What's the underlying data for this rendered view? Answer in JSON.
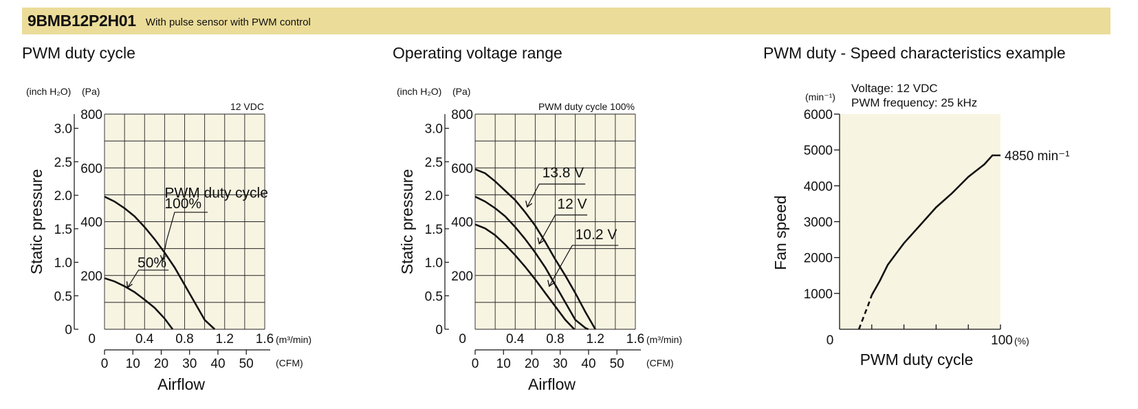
{
  "header": {
    "model": "9BMB12P2H01",
    "subtitle": "With pulse sensor with PWM control"
  },
  "panels": {
    "left_title": "PWM duty cycle",
    "middle_title": "Operating voltage range",
    "right_title": "PWM duty - Speed characteristics example"
  },
  "colors": {
    "banner": "#ebdc99",
    "plot_bg": "#f8f4e2",
    "line": "#111111",
    "speed_bg": "#f8f4e2"
  },
  "chart_data": [
    {
      "type": "line",
      "title": "PWM duty cycle",
      "ylabel": "Static pressure",
      "xlabel": "Airflow",
      "condition": "12 VDC",
      "x_unit": "(m³/min)",
      "x2_unit": "(CFM)",
      "y_unit_inch": "(inch H₂O)",
      "y_unit_pa": "(Pa)",
      "xlim": [
        0,
        1.6
      ],
      "ylim": [
        0,
        800
      ],
      "x_ticks": [
        "0",
        "0.4",
        "0.8",
        "1.2",
        "1.6"
      ],
      "y_ticks_pa": [
        "0",
        "200",
        "400",
        "600",
        "800"
      ],
      "y_ticks_inch": [
        "0",
        "0.5",
        "1.0",
        "1.5",
        "2.0",
        "2.5",
        "3.0"
      ],
      "cfm_ticks": [
        "0",
        "10",
        "20",
        "30",
        "40",
        "50"
      ],
      "grid": true,
      "series": [
        {
          "label": "100%",
          "x": [
            0,
            0.1,
            0.2,
            0.3,
            0.4,
            0.5,
            0.6,
            0.7,
            0.8,
            0.9,
            1.0,
            1.1
          ],
          "y": [
            493,
            475,
            450,
            420,
            380,
            335,
            285,
            230,
            165,
            100,
            35,
            0
          ]
        },
        {
          "label": "50%",
          "x": [
            0,
            0.1,
            0.2,
            0.3,
            0.4,
            0.5,
            0.6,
            0.68
          ],
          "y": [
            190,
            178,
            160,
            138,
            110,
            80,
            40,
            0
          ]
        }
      ],
      "annotations": [
        "PWM duty cycle",
        "100%",
        "50%"
      ]
    },
    {
      "type": "line",
      "title": "Operating voltage range",
      "ylabel": "Static pressure",
      "xlabel": "Airflow",
      "condition": "PWM duty cycle 100%",
      "x_unit": "(m³/min)",
      "x2_unit": "(CFM)",
      "y_unit_inch": "(inch H₂O)",
      "y_unit_pa": "(Pa)",
      "xlim": [
        0,
        1.6
      ],
      "ylim": [
        0,
        800
      ],
      "x_ticks": [
        "0",
        "0.4",
        "0.8",
        "1.2",
        "1.6"
      ],
      "y_ticks_pa": [
        "0",
        "200",
        "400",
        "600",
        "800"
      ],
      "y_ticks_inch": [
        "0",
        "0.5",
        "1.0",
        "1.5",
        "2.0",
        "2.5",
        "3.0"
      ],
      "cfm_ticks": [
        "0",
        "10",
        "20",
        "30",
        "40",
        "50"
      ],
      "grid": true,
      "series": [
        {
          "label": "13.8 V",
          "x": [
            0,
            0.1,
            0.2,
            0.3,
            0.4,
            0.5,
            0.6,
            0.7,
            0.8,
            0.9,
            1.0,
            1.1,
            1.2
          ],
          "y": [
            595,
            580,
            550,
            515,
            480,
            435,
            385,
            325,
            260,
            200,
            135,
            65,
            0
          ]
        },
        {
          "label": "12 V",
          "x": [
            0,
            0.1,
            0.2,
            0.3,
            0.4,
            0.5,
            0.6,
            0.7,
            0.8,
            0.9,
            1.0,
            1.1,
            1.13
          ],
          "y": [
            493,
            475,
            450,
            420,
            380,
            335,
            285,
            230,
            165,
            100,
            35,
            5,
            0
          ]
        },
        {
          "label": "10.2 V",
          "x": [
            0,
            0.1,
            0.2,
            0.3,
            0.4,
            0.5,
            0.6,
            0.7,
            0.8,
            0.9,
            0.99
          ],
          "y": [
            390,
            375,
            350,
            315,
            275,
            232,
            185,
            135,
            85,
            35,
            0
          ]
        }
      ],
      "annotations": [
        "13.8 V",
        "12 V",
        "10.2 V"
      ]
    },
    {
      "type": "line",
      "title": "PWM duty - Speed characteristics example",
      "ylabel": "Fan speed",
      "xlabel": "PWM duty cycle",
      "conditions": [
        "Voltage: 12 VDC",
        "PWM frequency: 25 kHz"
      ],
      "y_unit": "(min⁻¹)",
      "x_unit": "(%)",
      "xlim": [
        0,
        100
      ],
      "ylim": [
        0,
        6000
      ],
      "x_ticks": [
        "0",
        "100"
      ],
      "y_ticks": [
        "1000",
        "2000",
        "3000",
        "4000",
        "5000",
        "6000"
      ],
      "grid": false,
      "series": [
        {
          "label": "Fan speed",
          "x": [
            20,
            25,
            30,
            35,
            40,
            50,
            60,
            70,
            80,
            90,
            95,
            100
          ],
          "y": [
            950,
            1350,
            1800,
            2100,
            2400,
            2900,
            3400,
            3800,
            4250,
            4600,
            4850,
            4850
          ]
        },
        {
          "label": "extrapolated",
          "dashed": true,
          "x": [
            12,
            15,
            18,
            20
          ],
          "y": [
            0,
            350,
            700,
            950
          ]
        }
      ],
      "annotations": [
        "4850 min⁻¹"
      ]
    }
  ]
}
